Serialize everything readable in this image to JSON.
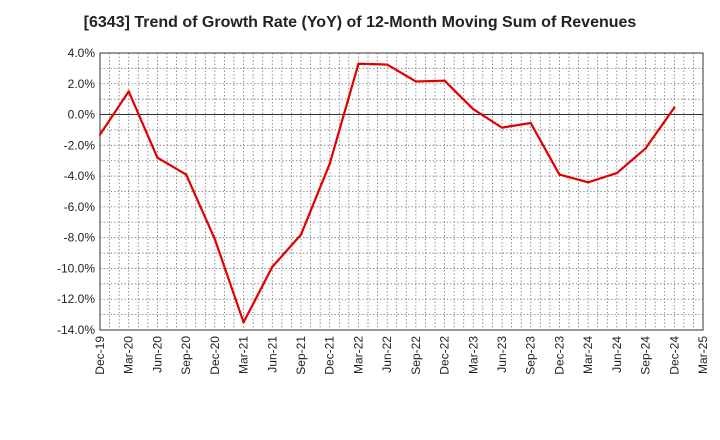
{
  "chart_data": {
    "type": "line",
    "title": "[6343]  Trend of Growth Rate (YoY) of 12-Month Moving Sum of Revenues",
    "xlabel": "",
    "ylabel": "",
    "ylim": [
      -14.0,
      4.0
    ],
    "yticks": [
      "4.0%",
      "2.0%",
      "0.0%",
      "-2.0%",
      "-4.0%",
      "-6.0%",
      "-8.0%",
      "-10.0%",
      "-12.0%",
      "-14.0%"
    ],
    "ytick_values": [
      4,
      2,
      0,
      -2,
      -4,
      -6,
      -8,
      -10,
      -12,
      -14
    ],
    "xtick_labels": [
      "Dec-19",
      "Mar-20",
      "Jun-20",
      "Sep-20",
      "Dec-20",
      "Mar-21",
      "Jun-21",
      "Sep-21",
      "Dec-21",
      "Mar-22",
      "Jun-22",
      "Sep-22",
      "Dec-22",
      "Mar-23",
      "Jun-23",
      "Sep-23",
      "Dec-23",
      "Mar-24",
      "Jun-24",
      "Sep-24",
      "Dec-24",
      "Mar-25"
    ],
    "grid": true,
    "line_color": "#e00000",
    "series": [
      {
        "values": [
          -1.3,
          1.5,
          -2.8,
          -3.9,
          -8.1,
          -13.5,
          -9.9,
          -7.8,
          -3.2,
          3.3,
          3.25,
          2.15,
          2.2,
          0.35,
          -0.85,
          -0.55,
          -3.9,
          -4.4,
          -3.8,
          -2.2,
          0.45
        ]
      }
    ]
  }
}
